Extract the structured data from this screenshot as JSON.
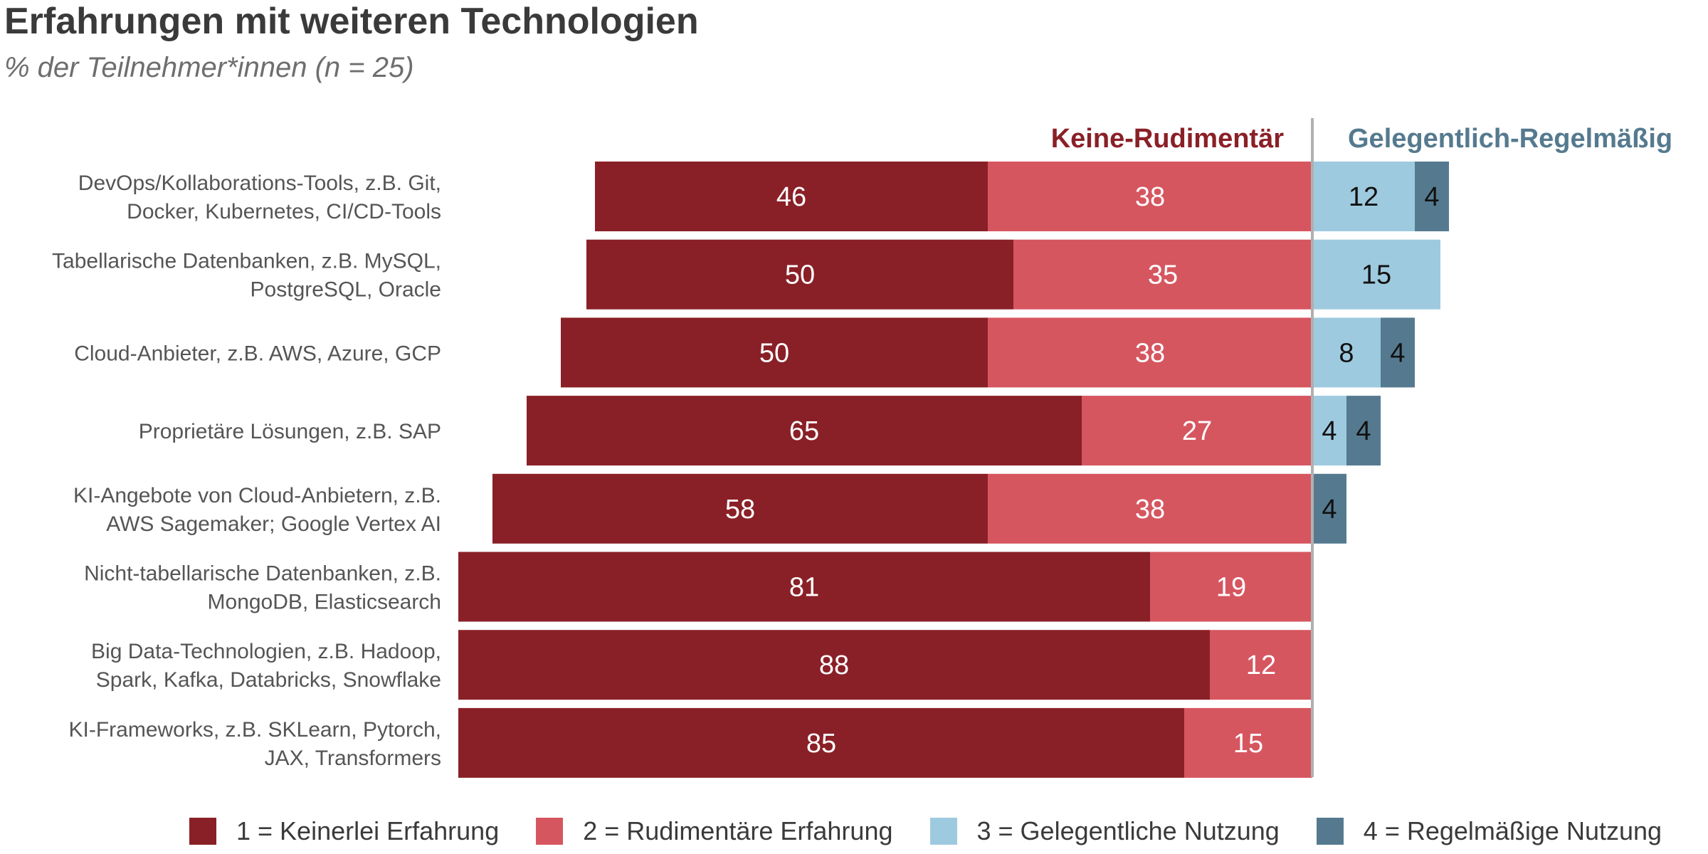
{
  "title": "Erfahrungen mit weiteren Technologien",
  "subtitle": "% der Teilnehmer*innen (n = 25)",
  "colors": {
    "keinerlei": "#8a2027",
    "rudimentaer": "#d65660",
    "gelegentlich": "#9ecadf",
    "regelmaessig": "#557a8f",
    "divider": "#b0b0b0",
    "label_left_group": "#8a2027",
    "label_right_group": "#557a8f"
  },
  "chart_data": {
    "type": "bar",
    "orientation": "horizontal-diverging",
    "group_labels": {
      "left": "Keine-Rudimentär",
      "right": "Gelegentlich-Regelmäßig"
    },
    "categories": [
      [
        "DevOps/Kollaborations-Tools, z.B. Git,",
        "Docker, Kubernetes, CI/CD-Tools"
      ],
      [
        "Tabellarische Datenbanken, z.B. MySQL,",
        "PostgreSQL, Oracle"
      ],
      [
        "Cloud-Anbieter, z.B. AWS, Azure, GCP"
      ],
      [
        "Proprietäre Lösungen, z.B. SAP"
      ],
      [
        "KI-Angebote von Cloud-Anbietern, z.B.",
        "AWS Sagemaker; Google Vertex AI"
      ],
      [
        "Nicht-tabellarische Datenbanken, z.B.",
        "MongoDB, Elasticsearch"
      ],
      [
        "Big Data-Technologien, z.B. Hadoop,",
        "Spark, Kafka, Databricks, Snowflake"
      ],
      [
        "KI-Frameworks, z.B. SKLearn, Pytorch,",
        "JAX, Transformers"
      ]
    ],
    "series": [
      {
        "name": "1 = Keinerlei Erfahrung",
        "side": "left",
        "color": "#8a2027",
        "label_color": "#ffffff",
        "values": [
          46,
          50,
          50,
          65,
          58,
          81,
          88,
          85
        ]
      },
      {
        "name": "2 = Rudimentäre Erfahrung",
        "side": "left",
        "color": "#d65660",
        "label_color": "#ffffff",
        "values": [
          38,
          35,
          38,
          27,
          38,
          19,
          12,
          15
        ]
      },
      {
        "name": "3 = Gelegentliche Nutzung",
        "side": "right",
        "color": "#9ecadf",
        "label_color": "#111111",
        "values": [
          12,
          15,
          8,
          4,
          0,
          0,
          0,
          0
        ]
      },
      {
        "name": "4 = Regelmäßige Nutzung",
        "side": "right",
        "color": "#557a8f",
        "label_color": "#111111",
        "values": [
          4,
          0,
          4,
          4,
          4,
          0,
          0,
          0
        ]
      }
    ],
    "xlim": [
      -100,
      100
    ],
    "legend": "bottom"
  }
}
